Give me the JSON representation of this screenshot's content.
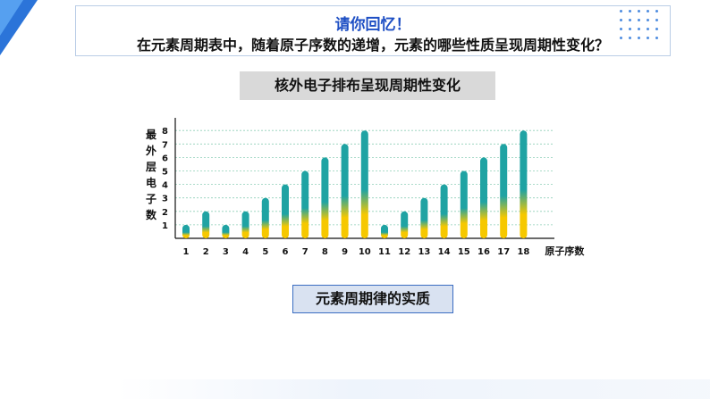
{
  "header": {
    "title": "请你回忆！",
    "question": "在元素周期表中，随着原子序数的递增，元素的哪些性质呈现周期性变化？"
  },
  "section1_label": "核外电子排布呈现周期性变化",
  "section2_label": "元素周期律的实质",
  "colors": {
    "accent": "#2b74d9",
    "bar_top": "#1fa3a3",
    "bar_bottom": "#f6c800",
    "grid": "#8fcfb8"
  },
  "chart_data": {
    "type": "bar",
    "categories": [
      "1",
      "2",
      "3",
      "4",
      "5",
      "6",
      "7",
      "8",
      "9",
      "10",
      "11",
      "12",
      "13",
      "14",
      "15",
      "16",
      "17",
      "18"
    ],
    "values": [
      1,
      2,
      1,
      2,
      3,
      4,
      5,
      6,
      7,
      8,
      1,
      2,
      3,
      4,
      5,
      6,
      7,
      8
    ],
    "xlabel": "原子序数",
    "ylabel": "最外层电子数",
    "ylabel_chars": [
      "最",
      "外",
      "层",
      "电",
      "子",
      "数"
    ],
    "yticks": [
      "1",
      "2",
      "3",
      "4",
      "5",
      "6",
      "7",
      "8"
    ],
    "ylim": [
      0,
      8
    ],
    "grid": true
  }
}
